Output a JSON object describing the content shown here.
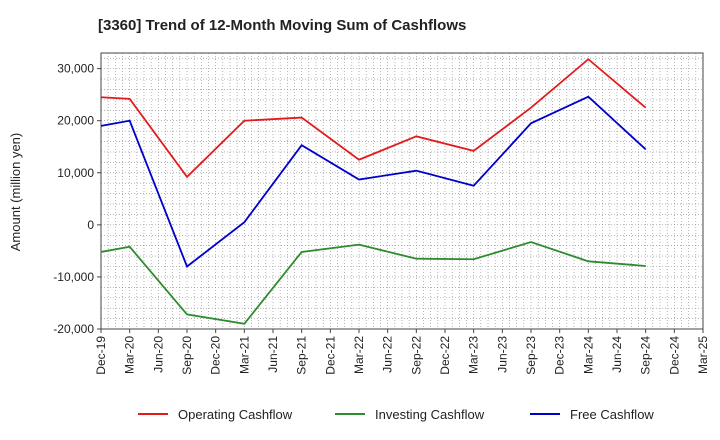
{
  "chart_data": {
    "type": "line",
    "title": "[3360]  Trend of 12-Month Moving Sum of Cashflows",
    "xlabel": "",
    "ylabel": "Amount (million yen)",
    "ylim": [
      -20000,
      33000
    ],
    "yticks": [
      -20000,
      -10000,
      0,
      10000,
      20000,
      30000
    ],
    "ytick_labels": [
      "-20,000",
      "-10,000",
      "0",
      "10,000",
      "20,000",
      "30,000"
    ],
    "categories": [
      "Dec-19",
      "Mar-20",
      "Jun-20",
      "Sep-20",
      "Dec-20",
      "Mar-21",
      "Jun-21",
      "Sep-21",
      "Dec-21",
      "Mar-22",
      "Jun-22",
      "Sep-22",
      "Dec-22",
      "Mar-23",
      "Jun-23",
      "Sep-23",
      "Dec-23",
      "Mar-24",
      "Jun-24",
      "Sep-24",
      "Dec-24",
      "Mar-25"
    ],
    "grid": true,
    "legend_position": "bottom",
    "series": [
      {
        "name": "Operating Cashflow",
        "color": "#e31a1c",
        "values": [
          24500,
          24200,
          null,
          9200,
          null,
          20000,
          null,
          20600,
          null,
          12500,
          null,
          17000,
          null,
          14200,
          null,
          22500,
          null,
          31800,
          null,
          22500,
          null,
          null
        ]
      },
      {
        "name": "Investing Cashflow",
        "color": "#2e8b2e",
        "values": [
          -5200,
          -4200,
          null,
          -17200,
          null,
          -19000,
          null,
          -5200,
          null,
          -3800,
          null,
          -6500,
          null,
          -6600,
          null,
          -3300,
          null,
          -7000,
          null,
          -7900,
          null,
          null
        ]
      },
      {
        "name": "Free Cashflow",
        "color": "#0000cc",
        "values": [
          19000,
          20000,
          null,
          -8000,
          null,
          500,
          null,
          15300,
          null,
          8700,
          null,
          10400,
          null,
          7500,
          null,
          19500,
          null,
          24600,
          null,
          14500,
          null,
          null
        ]
      }
    ]
  }
}
